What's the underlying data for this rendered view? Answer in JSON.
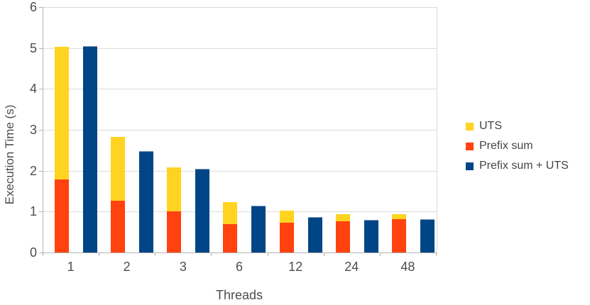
{
  "chart_data": {
    "type": "bar",
    "subtype": "per-category pair: left bar is a stack of 'Prefix sum' (bottom) + 'UTS' (top); right bar is the standalone 'Prefix sum + UTS' series",
    "title": "",
    "xlabel": "Threads",
    "ylabel": "Execution Time (s)",
    "categories": [
      "1",
      "2",
      "3",
      "6",
      "12",
      "24",
      "48"
    ],
    "ylim": [
      0,
      6
    ],
    "yticks": [
      0,
      1,
      2,
      3,
      4,
      5,
      6
    ],
    "grid": "horizontal",
    "legend_position": "right",
    "series": [
      {
        "name": "UTS",
        "color": "#FFD320",
        "role": "stack-upper-segment",
        "values": [
          3.25,
          1.56,
          1.07,
          0.53,
          0.29,
          0.18,
          0.13
        ]
      },
      {
        "name": "Prefix sum",
        "color": "#FF420E",
        "role": "stack-lower-segment",
        "values": [
          1.78,
          1.27,
          1.01,
          0.7,
          0.73,
          0.76,
          0.81
        ]
      },
      {
        "name": "Prefix sum + UTS",
        "color": "#004586",
        "role": "standalone-bar",
        "values": [
          5.04,
          2.48,
          2.05,
          1.14,
          0.87,
          0.8,
          0.82
        ]
      }
    ],
    "stack_totals": [
      5.03,
      2.83,
      2.08,
      1.23,
      1.02,
      0.94,
      0.94
    ]
  },
  "colors": {
    "background": "#ffffff",
    "gridline": "#dcdcdc",
    "axis": "#b3b3b3",
    "text": "#4d4d4d",
    "blue_bar_edge": "#7b97b5"
  }
}
